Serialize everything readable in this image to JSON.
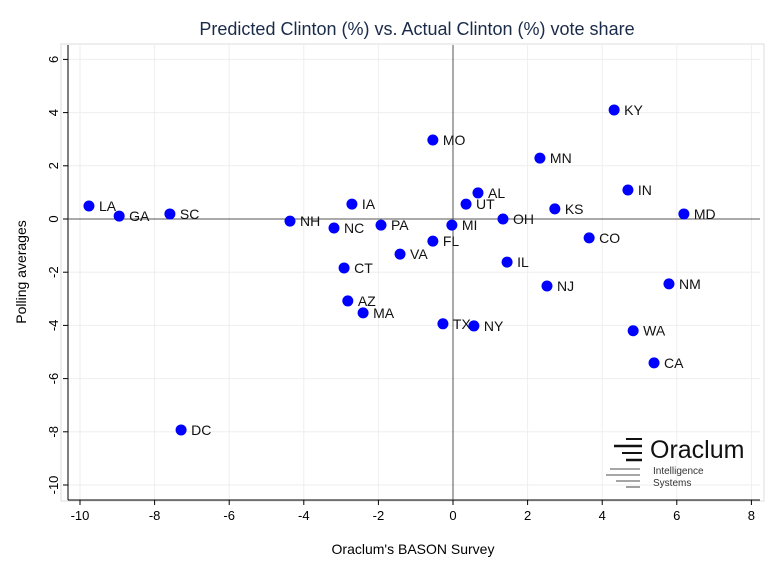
{
  "chart_data": {
    "type": "scatter",
    "title": "Predicted Clinton (%) vs. Actual Clinton (%) vote share",
    "xlabel": "Oraclum's BASON Survey",
    "ylabel": "Polling averages",
    "xlim": [
      -10.4,
      8.3
    ],
    "ylim": [
      -10.5,
      6.3
    ],
    "xticks": [
      -10,
      -8,
      -6,
      -4,
      -2,
      0,
      2,
      4,
      6,
      8
    ],
    "yticks": [
      -10,
      -8,
      -6,
      -4,
      -2,
      0,
      2,
      4,
      6
    ],
    "grid": true,
    "marker_color": "#0000ff",
    "points": [
      {
        "label": "LA",
        "x": -9.76,
        "y": 0.49
      },
      {
        "label": "GA",
        "x": -8.95,
        "y": 0.11
      },
      {
        "label": "SC",
        "x": -7.59,
        "y": 0.19
      },
      {
        "label": "DC",
        "x": -7.29,
        "y": -7.93
      },
      {
        "label": "NH",
        "x": -4.37,
        "y": -0.08
      },
      {
        "label": "NC",
        "x": -3.19,
        "y": -0.34
      },
      {
        "label": "IA",
        "x": -2.71,
        "y": 0.56
      },
      {
        "label": "CT",
        "x": -2.92,
        "y": -1.84
      },
      {
        "label": "AZ",
        "x": -2.82,
        "y": -3.08
      },
      {
        "label": "MA",
        "x": -2.41,
        "y": -3.53
      },
      {
        "label": "PA",
        "x": -1.93,
        "y": -0.23
      },
      {
        "label": "VA",
        "x": -1.42,
        "y": -1.32
      },
      {
        "label": "MO",
        "x": -0.54,
        "y": 2.97
      },
      {
        "label": "FL",
        "x": -0.54,
        "y": -0.83
      },
      {
        "label": "MI",
        "x": -0.03,
        "y": -0.23
      },
      {
        "label": "TX",
        "x": -0.27,
        "y": -3.94
      },
      {
        "label": "UT",
        "x": 0.35,
        "y": 0.56
      },
      {
        "label": "AL",
        "x": 0.67,
        "y": 0.98
      },
      {
        "label": "NY",
        "x": 0.56,
        "y": -4.02
      },
      {
        "label": "OH",
        "x": 1.34,
        "y": 0.0
      },
      {
        "label": "IL",
        "x": 1.45,
        "y": -1.62
      },
      {
        "label": "MN",
        "x": 2.33,
        "y": 2.29
      },
      {
        "label": "NJ",
        "x": 2.52,
        "y": -2.52
      },
      {
        "label": "KS",
        "x": 2.73,
        "y": 0.38
      },
      {
        "label": "CO",
        "x": 3.65,
        "y": -0.71
      },
      {
        "label": "KY",
        "x": 4.32,
        "y": 4.1
      },
      {
        "label": "IN",
        "x": 4.69,
        "y": 1.09
      },
      {
        "label": "MD",
        "x": 6.19,
        "y": 0.19
      },
      {
        "label": "NM",
        "x": 5.79,
        "y": -2.44
      },
      {
        "label": "WA",
        "x": 4.83,
        "y": -4.2
      },
      {
        "label": "CA",
        "x": 5.39,
        "y": -5.41
      }
    ]
  },
  "logo": {
    "name": "Oraclum",
    "line1": "Intelligence",
    "line2": "Systems"
  }
}
